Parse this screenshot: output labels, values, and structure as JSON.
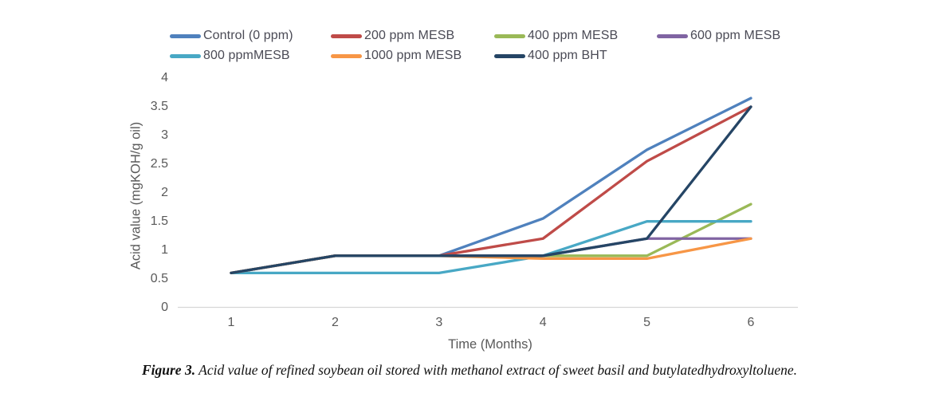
{
  "figure": {
    "caption_prefix": "Figure 3.",
    "caption_text": " Acid value of refined soybean oil stored with methanol extract of sweet basil and butylatedhydroxyltoluene."
  },
  "chart_data": {
    "type": "line",
    "title": "",
    "xlabel": "Time (Months)",
    "ylabel": "Acid value (mgKOH/g oil)",
    "x": [
      1,
      2,
      3,
      4,
      5,
      6
    ],
    "xticks": [
      "1",
      "2",
      "3",
      "4",
      "5",
      "6"
    ],
    "yticks": [
      "0",
      "0.5",
      "1",
      "1.5",
      "2",
      "2.5",
      "3",
      "3.5",
      "4"
    ],
    "ylim": [
      0,
      4
    ],
    "xlim": [
      0.5,
      6.45
    ],
    "grid": false,
    "legend_position": "top",
    "axis_line_color": "#d6d6d6",
    "tick_label_color": "#595959",
    "series": [
      {
        "name": "Control (0 ppm)",
        "color": "#4f81bd",
        "values": [
          0.6,
          0.9,
          0.9,
          1.55,
          2.75,
          3.65
        ]
      },
      {
        "name": "200 ppm MESB",
        "color": "#bf4b48",
        "values": [
          0.6,
          0.9,
          0.9,
          1.2,
          2.55,
          3.5
        ]
      },
      {
        "name": "400 ppm MESB",
        "color": "#9ab957",
        "values": [
          0.6,
          0.9,
          0.9,
          0.9,
          0.9,
          1.8
        ]
      },
      {
        "name": "600 ppm MESB",
        "color": "#8064a2",
        "values": [
          0.6,
          0.9,
          0.9,
          0.9,
          1.2,
          1.2
        ]
      },
      {
        "name": "800 ppmMESB",
        "color": "#48a8c5",
        "values": [
          0.6,
          0.6,
          0.6,
          0.9,
          1.5,
          1.5
        ]
      },
      {
        "name": "1000 ppm MESB",
        "color": "#f79646",
        "values": [
          0.6,
          0.9,
          0.9,
          0.85,
          0.85,
          1.2
        ]
      },
      {
        "name": "400 ppm BHT",
        "color": "#254565",
        "values": [
          0.6,
          0.9,
          0.9,
          0.9,
          1.2,
          3.5
        ]
      }
    ]
  }
}
